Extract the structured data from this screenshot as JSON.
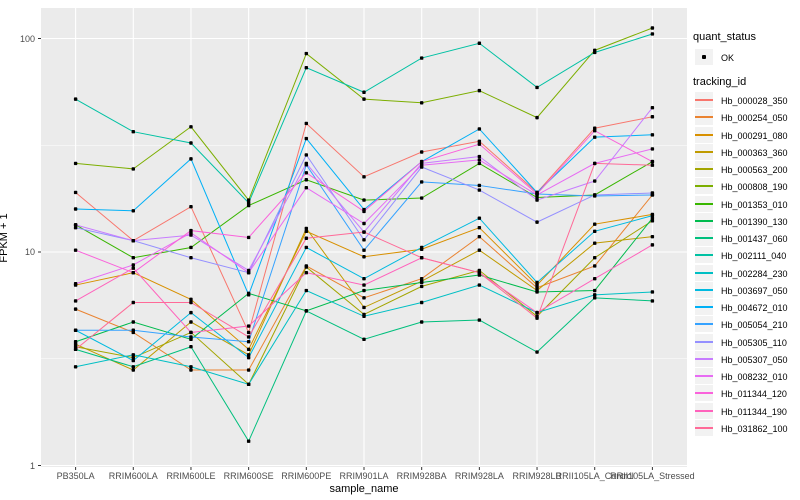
{
  "figure": {
    "background": "#FFFFFF",
    "panel_background": "#EBEBEB",
    "gridline_color": "#FFFFFF",
    "axis_text_color": "#4D4D4D",
    "point_color": "#000000"
  },
  "chart_data": {
    "type": "line",
    "title": "",
    "xlabel": "sample_name",
    "ylabel": "FPKM + 1",
    "y_scale": "log10",
    "ylim": [
      0.98,
      140
    ],
    "y_ticks": [
      "1",
      "10",
      "100"
    ],
    "y_minor_ticks": [
      3.1623,
      31.623
    ],
    "grid": true,
    "legend_position": "right",
    "categories": [
      "PB350LA",
      "RRIM600LA",
      "RRIM600LE",
      "RRIM600SE",
      "RRIM600PE",
      "RRIM901LA",
      "RRIM928BA",
      "RRIM928LA",
      "RRIM928LB",
      "RRII105LA_Control",
      "RRII105LA_Stressed"
    ],
    "legend": {
      "quant_status_title": "quant_status",
      "quant_status_items": [
        "OK"
      ],
      "tracking_id_title": "tracking_id"
    },
    "series": [
      {
        "name": "Hb_000028_350",
        "color": "#F8766D",
        "values": [
          19.0,
          11.3,
          16.3,
          4.2,
          40.0,
          22.5,
          29.4,
          33.0,
          19.0,
          38.0,
          43.0
        ]
      },
      {
        "name": "Hb_000254_050",
        "color": "#EA8331",
        "values": [
          5.4,
          4.2,
          2.8,
          2.8,
          8.6,
          6.1,
          7.5,
          11.8,
          6.8,
          8.6,
          18.5
        ]
      },
      {
        "name": "Hb_000291_080",
        "color": "#D89000",
        "values": [
          7.0,
          8.0,
          6.0,
          3.5,
          12.5,
          9.5,
          10.3,
          13.0,
          7.0,
          13.5,
          15.0
        ]
      },
      {
        "name": "Hb_000363_360",
        "color": "#C09B00",
        "values": [
          3.7,
          2.8,
          4.7,
          3.3,
          12.9,
          5.5,
          7.3,
          10.2,
          6.6,
          11.0,
          11.8
        ]
      },
      {
        "name": "Hb_000563_200",
        "color": "#A3A500",
        "values": [
          3.6,
          3.2,
          4.2,
          2.4,
          8.5,
          5.1,
          6.9,
          8.2,
          5.0,
          9.4,
          14.0
        ]
      },
      {
        "name": "Hb_000808_190",
        "color": "#7CAE00",
        "values": [
          26.0,
          24.5,
          38.6,
          17.5,
          85.0,
          52.0,
          50.0,
          57.0,
          42.6,
          88.0,
          112.0
        ]
      },
      {
        "name": "Hb_001353_010",
        "color": "#39B600",
        "values": [
          13.4,
          9.4,
          10.5,
          16.5,
          21.8,
          17.5,
          17.9,
          26.0,
          18.0,
          18.5,
          26.5
        ]
      },
      {
        "name": "Hb_001390_130",
        "color": "#00BB4E",
        "values": [
          3.8,
          4.7,
          3.9,
          6.4,
          5.3,
          6.6,
          7.2,
          7.8,
          6.5,
          6.6,
          14.4
        ]
      },
      {
        "name": "Hb_001437_060",
        "color": "#00BF7D",
        "values": [
          3.5,
          2.9,
          3.6,
          1.3,
          5.3,
          3.9,
          4.7,
          4.8,
          3.4,
          6.1,
          5.9
        ]
      },
      {
        "name": "Hb_002111_040",
        "color": "#00C1A3",
        "values": [
          52.0,
          36.6,
          32.4,
          17.0,
          73.0,
          56.0,
          81.0,
          95.0,
          59.0,
          86.0,
          105.0
        ]
      },
      {
        "name": "Hb_002284_230",
        "color": "#00BFC4",
        "values": [
          2.9,
          3.3,
          2.9,
          2.4,
          6.6,
          5.0,
          5.8,
          7.0,
          5.2,
          6.3,
          6.5
        ]
      },
      {
        "name": "Hb_003697_050",
        "color": "#00BAE0",
        "values": [
          4.3,
          3.1,
          5.2,
          3.2,
          10.5,
          7.5,
          10.5,
          14.4,
          7.2,
          12.5,
          14.8
        ]
      },
      {
        "name": "Hb_004672_010",
        "color": "#00B0F6",
        "values": [
          15.9,
          15.6,
          27.3,
          6.3,
          34.0,
          15.8,
          26.5,
          37.7,
          19.0,
          34.5,
          35.4
        ]
      },
      {
        "name": "Hb_005054_210",
        "color": "#35A2FF",
        "values": [
          4.3,
          4.3,
          4.0,
          3.8,
          25.6,
          10.2,
          21.3,
          20.5,
          18.7,
          18.3,
          18.5
        ]
      },
      {
        "name": "Hb_005305_110",
        "color": "#9590FF",
        "values": [
          13.0,
          11.3,
          9.4,
          8.0,
          28.5,
          11.4,
          25.0,
          19.5,
          13.8,
          18.5,
          18.9
        ]
      },
      {
        "name": "Hb_005307_050",
        "color": "#C77CFF",
        "values": [
          13.4,
          11.3,
          12.0,
          8.2,
          26.0,
          12.4,
          26.0,
          28.0,
          17.5,
          21.5,
          47.4
        ]
      },
      {
        "name": "Hb_008232_010",
        "color": "#E76BF3",
        "values": [
          7.1,
          8.7,
          12.3,
          8.0,
          20.0,
          13.6,
          25.5,
          27.0,
          18.5,
          26.0,
          30.4
        ]
      },
      {
        "name": "Hb_011344_120",
        "color": "#FA62DB",
        "values": [
          10.2,
          8.0,
          12.6,
          11.7,
          23.5,
          15.5,
          26.5,
          32.0,
          18.7,
          37.0,
          26.5
        ]
      },
      {
        "name": "Hb_011344_190",
        "color": "#FF62BC",
        "values": [
          5.9,
          8.4,
          4.2,
          4.5,
          8.0,
          7.0,
          9.4,
          8.0,
          5.2,
          7.5,
          10.8
        ]
      },
      {
        "name": "Hb_031862_100",
        "color": "#FF6A98",
        "values": [
          3.5,
          5.8,
          5.8,
          4.0,
          11.6,
          12.4,
          9.4,
          8.0,
          4.9,
          26.0,
          25.5
        ]
      }
    ]
  }
}
